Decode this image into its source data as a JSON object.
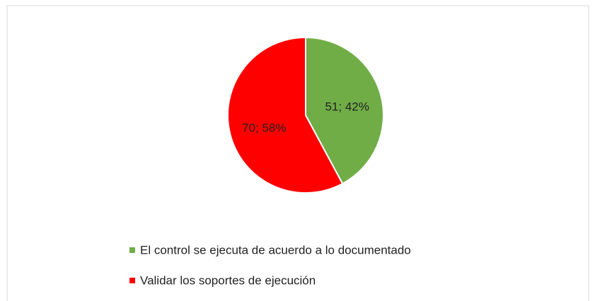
{
  "chart_data": {
    "type": "pie",
    "categories": [
      "El control se ejecuta de acuerdo a lo documentado",
      "Validar los soportes de ejecución"
    ],
    "values": [
      51,
      70
    ],
    "value_labels": [
      "51; 42%",
      "70; 58%"
    ],
    "colors": [
      "#70ad47",
      "#ff0000"
    ],
    "legend": "bottom"
  }
}
